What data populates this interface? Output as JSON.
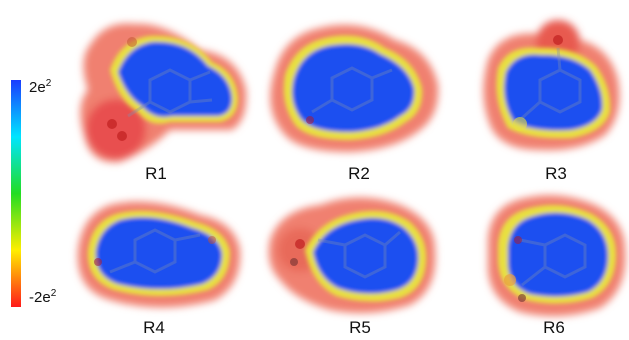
{
  "colorbar": {
    "max_base": "2e",
    "max_exp": "2",
    "min_base": "-2e",
    "min_exp": "2",
    "colors": [
      "#ff1a1a",
      "#ffee00",
      "#22dd22",
      "#00e5ff",
      "#1a3cff"
    ]
  },
  "panels": [
    {
      "label": "R1"
    },
    {
      "label": "R2"
    },
    {
      "label": "R3"
    },
    {
      "label": "R4"
    },
    {
      "label": "R5"
    },
    {
      "label": "R6"
    }
  ]
}
